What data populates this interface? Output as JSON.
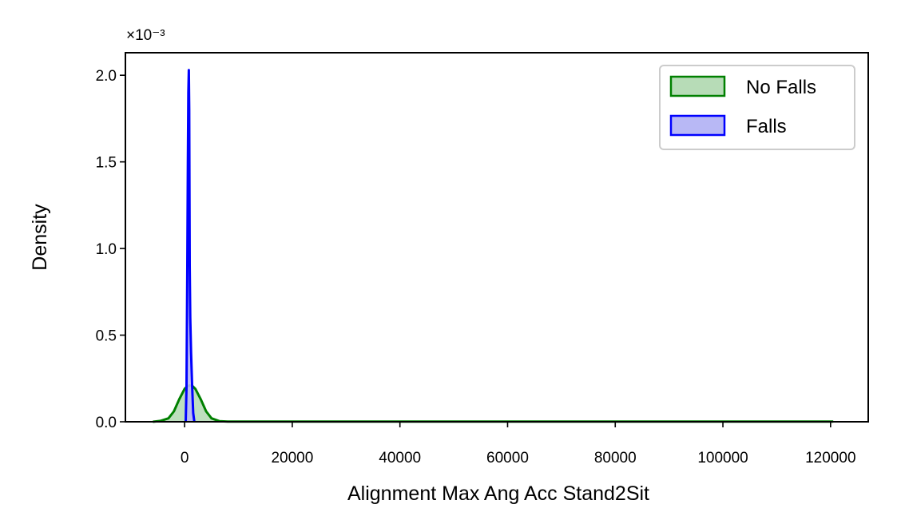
{
  "chart_data": {
    "type": "area",
    "xlabel": "Alignment Max Ang Acc Stand2Sit",
    "ylabel": "Density",
    "y_offset_label": "×10⁻³",
    "xlim": [
      -11000,
      127000
    ],
    "ylim": [
      0,
      0.00213
    ],
    "xticks": [
      0,
      20000,
      40000,
      60000,
      80000,
      100000,
      120000
    ],
    "xtick_labels": [
      "0",
      "20000",
      "40000",
      "60000",
      "80000",
      "100000",
      "120000"
    ],
    "yticks": [
      0,
      0.0005,
      0.001,
      0.0015,
      0.002
    ],
    "ytick_labels": [
      "0.0",
      "0.5",
      "1.0",
      "1.5",
      "2.0"
    ],
    "grid": false,
    "legend_position": "top-right",
    "series": [
      {
        "name": "No Falls",
        "color": "#008000",
        "fill": "#b7dcb7",
        "x": [
          -5900,
          -4500,
          -3000,
          -2000,
          -1000,
          0,
          500,
          1000,
          1500,
          2000,
          3000,
          4000,
          5000,
          6500,
          8000,
          20000,
          40000,
          60000,
          80000,
          100000,
          120500
        ],
        "y": [
          0,
          5e-06,
          2e-05,
          6e-05,
          0.00013,
          0.00019,
          0.000205,
          0.00021,
          0.000205,
          0.00019,
          0.00013,
          6e-05,
          2e-05,
          3e-06,
          1e-06,
          1e-06,
          1e-06,
          1e-06,
          1e-06,
          1e-06,
          1e-06
        ]
      },
      {
        "name": "Falls",
        "color": "#0000ff",
        "fill": "#b8b8f5",
        "x": [
          200,
          350,
          500,
          600,
          700,
          780,
          850,
          950,
          1050,
          1200,
          1400,
          1600,
          1800
        ],
        "y": [
          0,
          0.0002,
          0.0009,
          0.0015,
          0.0019,
          0.00203,
          0.0018,
          0.0009,
          0.0006,
          0.0004,
          0.0002,
          5e-05,
          0
        ]
      }
    ]
  }
}
